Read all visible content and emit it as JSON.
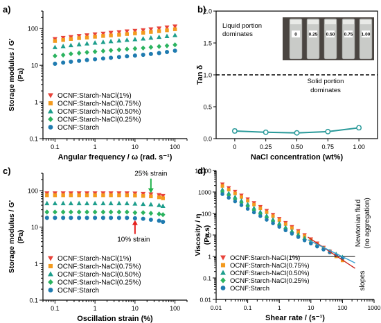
{
  "colors": {
    "s1": "#e8433a",
    "s075": "#f39a1e",
    "s050": "#1e9e8c",
    "s025": "#2bb35f",
    "s0": "#1f7bb0",
    "line_b": "#2a9a9a",
    "arrow_red": "#e5201e",
    "arrow_green": "#22b24c",
    "line_d_red": "#cc2a20",
    "line_d_blue": "#3a9fd0"
  },
  "chart_data": [
    {
      "panel": "a)",
      "type": "scatter",
      "xscale": "log",
      "yscale": "log",
      "xlim": [
        0.05,
        200
      ],
      "ylim": [
        0.1,
        300
      ],
      "xlabel": "Angular frequency / ω (rad. s⁻¹)",
      "ylabel_line1": "Storage modulus / G'",
      "ylabel_line2": "(Pa)",
      "xticks": [
        0.1,
        1,
        10,
        100
      ],
      "xticklabels": [
        "0.1",
        "1",
        "10",
        "100"
      ],
      "yticks": [
        0.1,
        1,
        10,
        100
      ],
      "yticklabels": [
        "0.1",
        "1",
        "10",
        "100"
      ],
      "legend_position": "bottom-left",
      "x": [
        0.1,
        0.16,
        0.25,
        0.4,
        0.63,
        1,
        1.6,
        2.5,
        4,
        6.3,
        10,
        16,
        25,
        40,
        63,
        100
      ],
      "series": [
        {
          "name": "OCNF:Starch-NaCl(1%)",
          "marker": "triangle-down",
          "color_key": "s1",
          "values": [
            52,
            56,
            59,
            63,
            66,
            70,
            73,
            77,
            80,
            84,
            87,
            91,
            96,
            101,
            108,
            115
          ]
        },
        {
          "name": "OCNF:Starch-NaCl(0.75%)",
          "marker": "square",
          "color_key": "s075",
          "values": [
            46,
            49,
            52,
            55,
            57,
            60,
            63,
            65,
            68,
            71,
            74,
            77,
            81,
            85,
            90,
            96
          ]
        },
        {
          "name": "OCNF:Starch-NaCl(0.50%)",
          "marker": "triangle-up",
          "color_key": "s050",
          "values": [
            31,
            33,
            35,
            37,
            39,
            41,
            43,
            45,
            47,
            49,
            51,
            53,
            56,
            59,
            62,
            66
          ]
        },
        {
          "name": "OCNF:Starch-NaCl(0.25%)",
          "marker": "diamond",
          "color_key": "s025",
          "values": [
            18,
            19,
            20.5,
            21.5,
            22.5,
            23.5,
            24.5,
            25.5,
            26.5,
            27.5,
            28.5,
            29.5,
            31,
            32.5,
            34,
            36
          ]
        },
        {
          "name": "OCNF:Starch",
          "marker": "circle",
          "color_key": "s0",
          "values": [
            11,
            11.8,
            12.5,
            13.2,
            13.9,
            14.6,
            15.3,
            16,
            16.8,
            17.6,
            18.4,
            19.3,
            20.3,
            21.5,
            23,
            25
          ]
        }
      ]
    },
    {
      "panel": "b)",
      "type": "line",
      "xlabel": "NaCl concentration (wt%)",
      "ylabel": "Tan δ",
      "xlim": [
        -0.15,
        1.15
      ],
      "ylim": [
        0,
        2
      ],
      "xticks": [
        0,
        0.25,
        0.5,
        0.75,
        1
      ],
      "xticklabels": [
        "0",
        "0.25",
        "0.50",
        "0.75",
        "1.00"
      ],
      "yticks": [
        0,
        0.5,
        1,
        1.5,
        2
      ],
      "yticklabels": [
        "0.0",
        "0.5",
        "1.0",
        "1.5",
        "2.0"
      ],
      "reference_line": 1.0,
      "annotation_top": [
        "Liquid portion",
        "dominates"
      ],
      "annotation_bottom": [
        "Solid portion",
        "dominates"
      ],
      "vial_labels": [
        "0",
        "0.25",
        "0.50",
        "0.75",
        "1.00"
      ],
      "x": [
        0,
        0.25,
        0.5,
        0.75,
        1.0
      ],
      "values": [
        0.12,
        0.1,
        0.09,
        0.11,
        0.17
      ],
      "errors": [
        0.03,
        0.02,
        0.02,
        0.02,
        0.03
      ]
    },
    {
      "panel": "c)",
      "type": "scatter",
      "xscale": "log",
      "yscale": "log",
      "xlim": [
        0.05,
        200
      ],
      "ylim": [
        0.1,
        300
      ],
      "xlabel": "Oscillation strain (%)",
      "ylabel_line1": "Storage modulus / G'",
      "ylabel_line2": "(Pa)",
      "xticks": [
        0.1,
        1,
        10,
        100
      ],
      "xticklabels": [
        "0.1",
        "1",
        "10",
        "100"
      ],
      "yticks": [
        0.1,
        1,
        10,
        100
      ],
      "yticklabels": [
        "0.1",
        "1",
        "10",
        "100"
      ],
      "legend_position": "bottom-left",
      "annotations": [
        {
          "text": "25% strain",
          "x": 25,
          "y": 75,
          "arrow_color_key": "arrow_green",
          "label_above": true
        },
        {
          "text": "10% strain",
          "x": 10,
          "y": 17,
          "arrow_color_key": "arrow_red",
          "label_above": false
        }
      ],
      "x": [
        0.063,
        0.1,
        0.16,
        0.25,
        0.4,
        0.63,
        1,
        1.6,
        2.5,
        4,
        6.3,
        10,
        16,
        25,
        40,
        50
      ],
      "series": [
        {
          "name": "OCNF:Starch-NaCl(1%)",
          "marker": "triangle-down",
          "color_key": "s1",
          "values": [
            85,
            85,
            85,
            85,
            85,
            85,
            85,
            85,
            85,
            85,
            85,
            84,
            82,
            80,
            76,
            72
          ]
        },
        {
          "name": "OCNF:Starch-NaCl(0.75%)",
          "marker": "square",
          "color_key": "s075",
          "values": [
            75,
            75,
            75,
            75,
            75,
            75,
            75,
            75,
            75,
            75,
            75,
            74,
            72,
            70,
            66,
            62
          ]
        },
        {
          "name": "OCNF:Starch-NaCl(0.50%)",
          "marker": "triangle-up",
          "color_key": "s050",
          "values": [
            45,
            45,
            45,
            45,
            45,
            45,
            45,
            45,
            45,
            45,
            45,
            44,
            43,
            42,
            40,
            38
          ]
        },
        {
          "name": "OCNF:Starch-NaCl(0.25%)",
          "marker": "diamond",
          "color_key": "s025",
          "values": [
            26,
            26,
            26,
            26,
            26,
            26,
            26,
            26,
            26,
            26,
            26,
            25,
            25,
            24,
            23,
            22
          ]
        },
        {
          "name": "OCNF:Starch",
          "marker": "circle",
          "color_key": "s0",
          "values": [
            18,
            18,
            18,
            18,
            18,
            18,
            18,
            18,
            18,
            18,
            18,
            17.5,
            17,
            16,
            15,
            14
          ]
        }
      ]
    },
    {
      "panel": "d)",
      "type": "scatter",
      "xscale": "log",
      "yscale": "log",
      "xlim": [
        0.01,
        1000
      ],
      "ylim": [
        0.01,
        10000
      ],
      "xlabel": "Shear rate / (s⁻¹)",
      "ylabel_line1": "Viscosity / η",
      "ylabel_line2": "(Pa.s)",
      "xticks": [
        0.01,
        0.1,
        1,
        10,
        100,
        1000
      ],
      "xticklabels": [
        "0.01",
        "0.1",
        "1",
        "10",
        "100",
        "1000"
      ],
      "yticks": [
        0.01,
        0.1,
        1,
        10,
        100,
        1000,
        10000
      ],
      "yticklabels": [
        "0.01",
        "0.1",
        "1",
        "10",
        "100",
        "1000",
        "10000"
      ],
      "legend_position": "bottom-left",
      "newtonian_label": [
        "Newtonian fluid",
        "(no aggregation)"
      ],
      "slopes_label": "slopes",
      "reference_line": 1.0,
      "x": [
        0.0158,
        0.0251,
        0.0398,
        0.0631,
        0.1,
        0.158,
        0.251,
        0.398,
        0.631,
        1,
        1.58,
        2.51,
        3.98,
        6.31,
        10,
        15.8,
        25.1,
        39.8,
        63.1,
        100
      ],
      "series": [
        {
          "name": "OCNF:Starch-NaCl(1%)",
          "marker": "triangle-down",
          "color_key": "s1",
          "values": [
            2300,
            1550,
            1050,
            700,
            470,
            310,
            205,
            135,
            88,
            57,
            37,
            24,
            15.5,
            10,
            6.4,
            4.1,
            2.6,
            1.7,
            1.1,
            0.7
          ]
        },
        {
          "name": "OCNF:Starch-NaCl(0.75%)",
          "marker": "square",
          "color_key": "s075",
          "values": [
            1900,
            1280,
            860,
            580,
            390,
            260,
            172,
            114,
            75,
            49,
            32,
            21,
            13.5,
            8.8,
            5.7,
            3.7,
            2.4,
            1.55,
            1.0,
            0.65
          ]
        },
        {
          "name": "OCNF:Starch-NaCl(0.50%)",
          "marker": "triangle-up",
          "color_key": "s050",
          "values": [
            1300,
            880,
            590,
            400,
            270,
            180,
            120,
            80,
            53,
            35,
            23,
            15.5,
            10.5,
            7.2,
            5.0,
            3.5,
            2.5,
            1.8,
            1.3,
            0.95
          ]
        },
        {
          "name": "OCNF:Starch-NaCl(0.25%)",
          "marker": "diamond",
          "color_key": "s025",
          "values": [
            1000,
            680,
            460,
            310,
            210,
            140,
            94,
            63,
            42,
            28,
            19,
            13,
            9.0,
            6.3,
            4.4,
            3.1,
            2.2,
            1.6,
            1.15,
            0.85
          ]
        },
        {
          "name": "OCNF:Starch",
          "marker": "circle",
          "color_key": "s0",
          "values": [
            800,
            540,
            365,
            245,
            165,
            112,
            76,
            51,
            35,
            24,
            16.5,
            11.5,
            8.0,
            5.6,
            4.0,
            2.9,
            2.1,
            1.55,
            1.15,
            0.85
          ]
        }
      ]
    }
  ]
}
